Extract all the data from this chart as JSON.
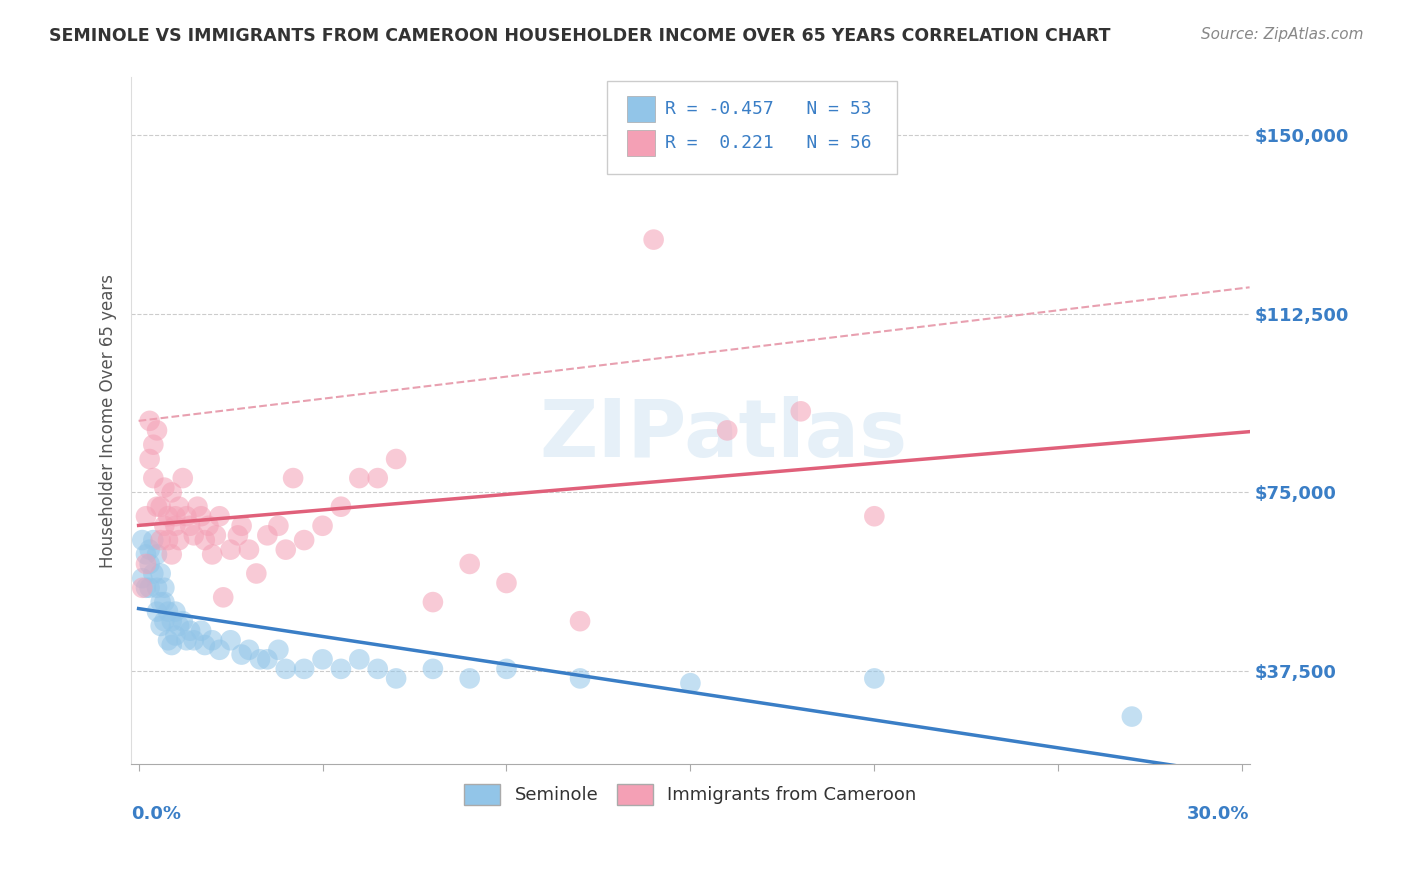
{
  "title": "SEMINOLE VS IMMIGRANTS FROM CAMEROON HOUSEHOLDER INCOME OVER 65 YEARS CORRELATION CHART",
  "source": "Source: ZipAtlas.com",
  "ylabel": "Householder Income Over 65 years",
  "xlim": [
    -0.002,
    0.302
  ],
  "ylim": [
    18000,
    162000
  ],
  "ytick_vals": [
    37500,
    75000,
    112500,
    150000
  ],
  "ytick_labels": [
    "$37,500",
    "$75,000",
    "$112,500",
    "$150,000"
  ],
  "blue_R": -0.457,
  "blue_N": 53,
  "pink_R": 0.221,
  "pink_N": 56,
  "blue_color": "#92C5E8",
  "pink_color": "#F4A0B5",
  "blue_line_color": "#3A7EC6",
  "pink_line_color": "#E0607A",
  "dash_line_color": "#E8A0B0",
  "blue_label": "Seminole",
  "pink_label": "Immigrants from Cameroon",
  "blue_scatter_x": [
    0.001,
    0.001,
    0.002,
    0.002,
    0.003,
    0.003,
    0.003,
    0.004,
    0.004,
    0.005,
    0.005,
    0.005,
    0.006,
    0.006,
    0.006,
    0.007,
    0.007,
    0.007,
    0.008,
    0.008,
    0.009,
    0.009,
    0.01,
    0.01,
    0.011,
    0.012,
    0.013,
    0.014,
    0.015,
    0.017,
    0.018,
    0.02,
    0.022,
    0.025,
    0.028,
    0.03,
    0.033,
    0.035,
    0.038,
    0.04,
    0.045,
    0.05,
    0.055,
    0.06,
    0.065,
    0.07,
    0.08,
    0.09,
    0.1,
    0.12,
    0.15,
    0.2,
    0.27
  ],
  "blue_scatter_y": [
    65000,
    57000,
    62000,
    55000,
    63000,
    55000,
    60000,
    58000,
    65000,
    62000,
    55000,
    50000,
    58000,
    52000,
    47000,
    55000,
    48000,
    52000,
    50000,
    44000,
    48000,
    43000,
    50000,
    45000,
    47000,
    48000,
    44000,
    46000,
    44000,
    46000,
    43000,
    44000,
    42000,
    44000,
    41000,
    42000,
    40000,
    40000,
    42000,
    38000,
    38000,
    40000,
    38000,
    40000,
    38000,
    36000,
    38000,
    36000,
    38000,
    36000,
    35000,
    36000,
    28000
  ],
  "pink_scatter_x": [
    0.001,
    0.002,
    0.002,
    0.003,
    0.003,
    0.004,
    0.004,
    0.005,
    0.005,
    0.006,
    0.006,
    0.007,
    0.007,
    0.008,
    0.008,
    0.009,
    0.009,
    0.01,
    0.01,
    0.011,
    0.011,
    0.012,
    0.013,
    0.014,
    0.015,
    0.016,
    0.017,
    0.018,
    0.019,
    0.02,
    0.021,
    0.022,
    0.023,
    0.025,
    0.027,
    0.028,
    0.03,
    0.032,
    0.035,
    0.038,
    0.04,
    0.042,
    0.045,
    0.05,
    0.055,
    0.06,
    0.065,
    0.07,
    0.08,
    0.09,
    0.1,
    0.12,
    0.14,
    0.16,
    0.18,
    0.2
  ],
  "pink_scatter_y": [
    55000,
    70000,
    60000,
    82000,
    90000,
    78000,
    85000,
    72000,
    88000,
    65000,
    72000,
    76000,
    68000,
    70000,
    65000,
    62000,
    75000,
    68000,
    70000,
    65000,
    72000,
    78000,
    70000,
    68000,
    66000,
    72000,
    70000,
    65000,
    68000,
    62000,
    66000,
    70000,
    53000,
    63000,
    66000,
    68000,
    63000,
    58000,
    66000,
    68000,
    63000,
    78000,
    65000,
    68000,
    72000,
    78000,
    78000,
    82000,
    52000,
    60000,
    56000,
    48000,
    128000,
    88000,
    92000,
    70000
  ],
  "background_color": "#ffffff",
  "grid_color": "#cccccc",
  "title_color": "#333333",
  "axis_label_color": "#555555",
  "ytick_color": "#3A7EC6",
  "legend_box_color": "#e8f0fa"
}
